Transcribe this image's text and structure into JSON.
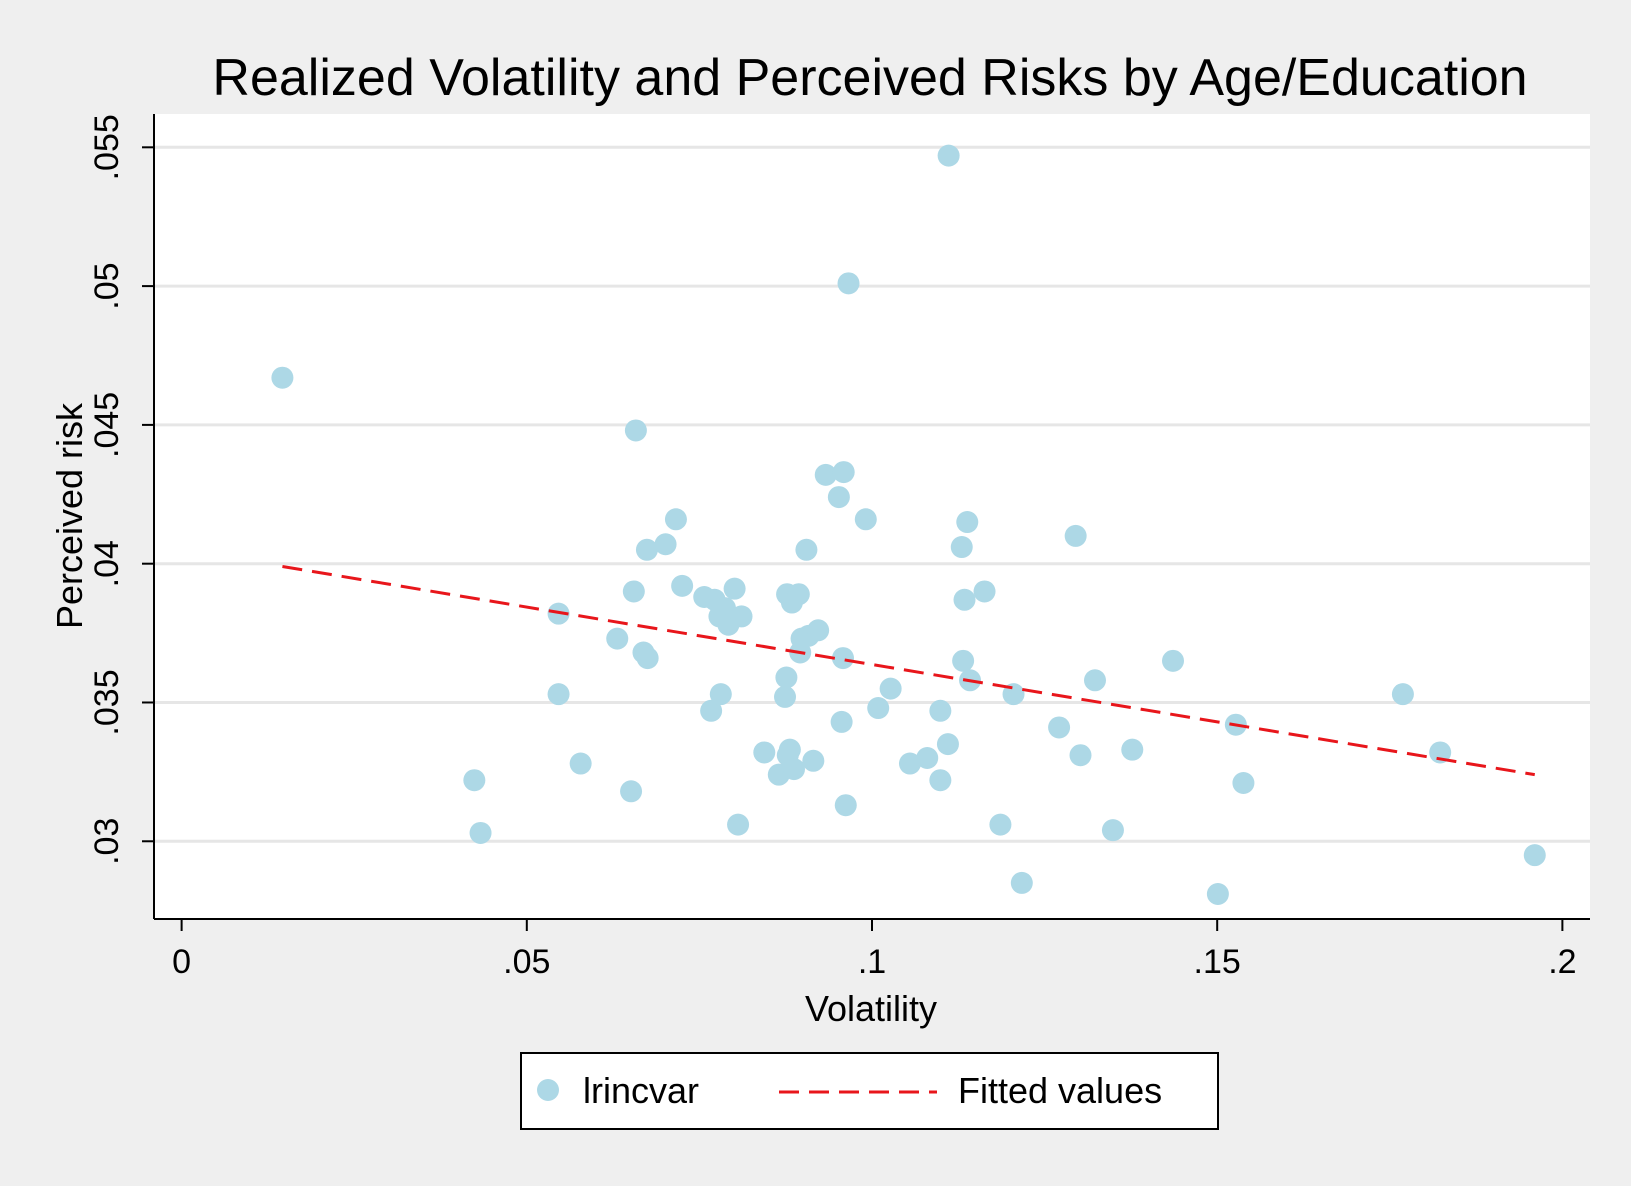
{
  "chart_data": {
    "type": "scatter",
    "title": "Realized Volatility and Perceived Risks by Age/Education",
    "xlabel": "Volatility",
    "ylabel": "Perceived risk",
    "xlim": [
      -0.004,
      0.204
    ],
    "ylim": [
      0.0272,
      0.0562
    ],
    "x_ticks": [
      0,
      0.05,
      0.1,
      0.15,
      0.2
    ],
    "x_tick_labels": [
      "0",
      ".05",
      ".1",
      ".15",
      ".2"
    ],
    "y_ticks": [
      0.03,
      0.035,
      0.04,
      0.045,
      0.05,
      0.055
    ],
    "y_tick_labels": [
      ".03",
      ".035",
      ".04",
      ".045",
      ".05",
      ".055"
    ],
    "grid": "horizontal",
    "legend_position": "bottom",
    "colors": {
      "background": "#efefef",
      "plot_area": "#ffffff",
      "grid": "#e6e6e6",
      "marker": "#add8e6",
      "fit_line": "#e8161b"
    },
    "series": [
      {
        "name": "lrincvar",
        "kind": "markers",
        "points": [
          [
            0.0146,
            0.0467
          ],
          [
            0.0424,
            0.0322
          ],
          [
            0.0433,
            0.0303
          ],
          [
            0.0546,
            0.0382
          ],
          [
            0.0546,
            0.0353
          ],
          [
            0.0578,
            0.0328
          ],
          [
            0.0631,
            0.0373
          ],
          [
            0.0651,
            0.0318
          ],
          [
            0.0655,
            0.039
          ],
          [
            0.0658,
            0.0448
          ],
          [
            0.0669,
            0.0368
          ],
          [
            0.0674,
            0.0405
          ],
          [
            0.0675,
            0.0366
          ],
          [
            0.0701,
            0.0407
          ],
          [
            0.0716,
            0.0416
          ],
          [
            0.0725,
            0.0392
          ],
          [
            0.0757,
            0.0388
          ],
          [
            0.0767,
            0.0347
          ],
          [
            0.0772,
            0.0387
          ],
          [
            0.0779,
            0.0381
          ],
          [
            0.0781,
            0.0353
          ],
          [
            0.0787,
            0.0384
          ],
          [
            0.0792,
            0.0378
          ],
          [
            0.0801,
            0.0391
          ],
          [
            0.0806,
            0.0306
          ],
          [
            0.0811,
            0.0381
          ],
          [
            0.0844,
            0.0332
          ],
          [
            0.0865,
            0.0324
          ],
          [
            0.0874,
            0.0352
          ],
          [
            0.0876,
            0.0359
          ],
          [
            0.0877,
            0.0389
          ],
          [
            0.0878,
            0.0331
          ],
          [
            0.0881,
            0.0333
          ],
          [
            0.0884,
            0.0386
          ],
          [
            0.0887,
            0.0326
          ],
          [
            0.0894,
            0.0389
          ],
          [
            0.0896,
            0.0368
          ],
          [
            0.0898,
            0.0373
          ],
          [
            0.0905,
            0.0405
          ],
          [
            0.0908,
            0.0374
          ],
          [
            0.0915,
            0.0329
          ],
          [
            0.0922,
            0.0376
          ],
          [
            0.0933,
            0.0432
          ],
          [
            0.0952,
            0.0424
          ],
          [
            0.0956,
            0.0343
          ],
          [
            0.0958,
            0.0366
          ],
          [
            0.0959,
            0.0433
          ],
          [
            0.0962,
            0.0313
          ],
          [
            0.0966,
            0.0501
          ],
          [
            0.0991,
            0.0416
          ],
          [
            0.1009,
            0.0348
          ],
          [
            0.1027,
            0.0355
          ],
          [
            0.1055,
            0.0328
          ],
          [
            0.108,
            0.033
          ],
          [
            0.1099,
            0.0347
          ],
          [
            0.1099,
            0.0322
          ],
          [
            0.111,
            0.0335
          ],
          [
            0.1111,
            0.0547
          ],
          [
            0.113,
            0.0406
          ],
          [
            0.1132,
            0.0365
          ],
          [
            0.1134,
            0.0387
          ],
          [
            0.1138,
            0.0415
          ],
          [
            0.1142,
            0.0358
          ],
          [
            0.1163,
            0.039
          ],
          [
            0.1186,
            0.0306
          ],
          [
            0.1205,
            0.0353
          ],
          [
            0.1217,
            0.0285
          ],
          [
            0.1271,
            0.0341
          ],
          [
            0.1295,
            0.041
          ],
          [
            0.1302,
            0.0331
          ],
          [
            0.1323,
            0.0358
          ],
          [
            0.1349,
            0.0304
          ],
          [
            0.1377,
            0.0333
          ],
          [
            0.1436,
            0.0365
          ],
          [
            0.1501,
            0.0281
          ],
          [
            0.1527,
            0.0342
          ],
          [
            0.1538,
            0.0321
          ],
          [
            0.1769,
            0.0353
          ],
          [
            0.1823,
            0.0332
          ],
          [
            0.196,
            0.0295
          ]
        ]
      },
      {
        "name": "Fitted values",
        "kind": "dashed-line",
        "points": [
          [
            0.0146,
            0.0399
          ],
          [
            0.196,
            0.0324
          ]
        ]
      }
    ]
  }
}
